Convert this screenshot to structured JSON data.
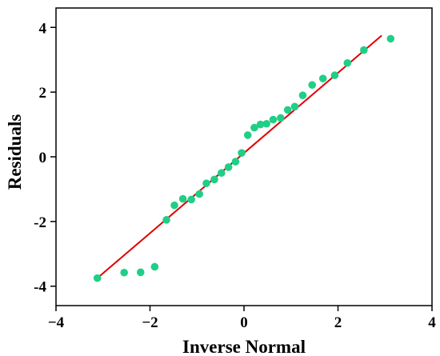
{
  "chart_data": {
    "type": "scatter",
    "title": "",
    "xlabel": "Inverse Normal",
    "ylabel": "Residuals",
    "xlim": [
      -4,
      4
    ],
    "ylim": [
      -4.6,
      4.6
    ],
    "xticks": [
      -4,
      -2,
      0,
      2,
      4
    ],
    "yticks": [
      -4,
      -2,
      0,
      2,
      4
    ],
    "xtick_labels": [
      "−4",
      "−2",
      "0",
      "2",
      "4"
    ],
    "ytick_labels": [
      "-4",
      "-2",
      "0",
      "2",
      "4"
    ],
    "grid": false,
    "colors": {
      "points": "#1fcf87",
      "line": "#e00000",
      "axis": "#000000"
    },
    "series": [
      {
        "type": "scatter",
        "x": [
          -3.12,
          -2.55,
          -2.2,
          -1.9,
          -1.65,
          -1.48,
          -1.3,
          -1.12,
          -0.95,
          -0.8,
          -0.63,
          -0.48,
          -0.33,
          -0.18,
          -0.05,
          0.08,
          0.22,
          0.35,
          0.48,
          0.62,
          0.78,
          0.93,
          1.08,
          1.25,
          1.45,
          1.68,
          1.93,
          2.2,
          2.55,
          3.12
        ],
        "y": [
          -3.75,
          -3.58,
          -3.57,
          -3.4,
          -1.95,
          -1.5,
          -1.3,
          -1.32,
          -1.15,
          -0.82,
          -0.7,
          -0.5,
          -0.32,
          -0.15,
          0.12,
          0.67,
          0.9,
          1.0,
          1.02,
          1.15,
          1.2,
          1.45,
          1.55,
          1.9,
          2.22,
          2.42,
          2.52,
          2.9,
          3.3,
          3.65
        ]
      },
      {
        "type": "line",
        "x": [
          -3.12,
          2.93
        ],
        "y": [
          -3.75,
          3.75
        ]
      }
    ]
  }
}
